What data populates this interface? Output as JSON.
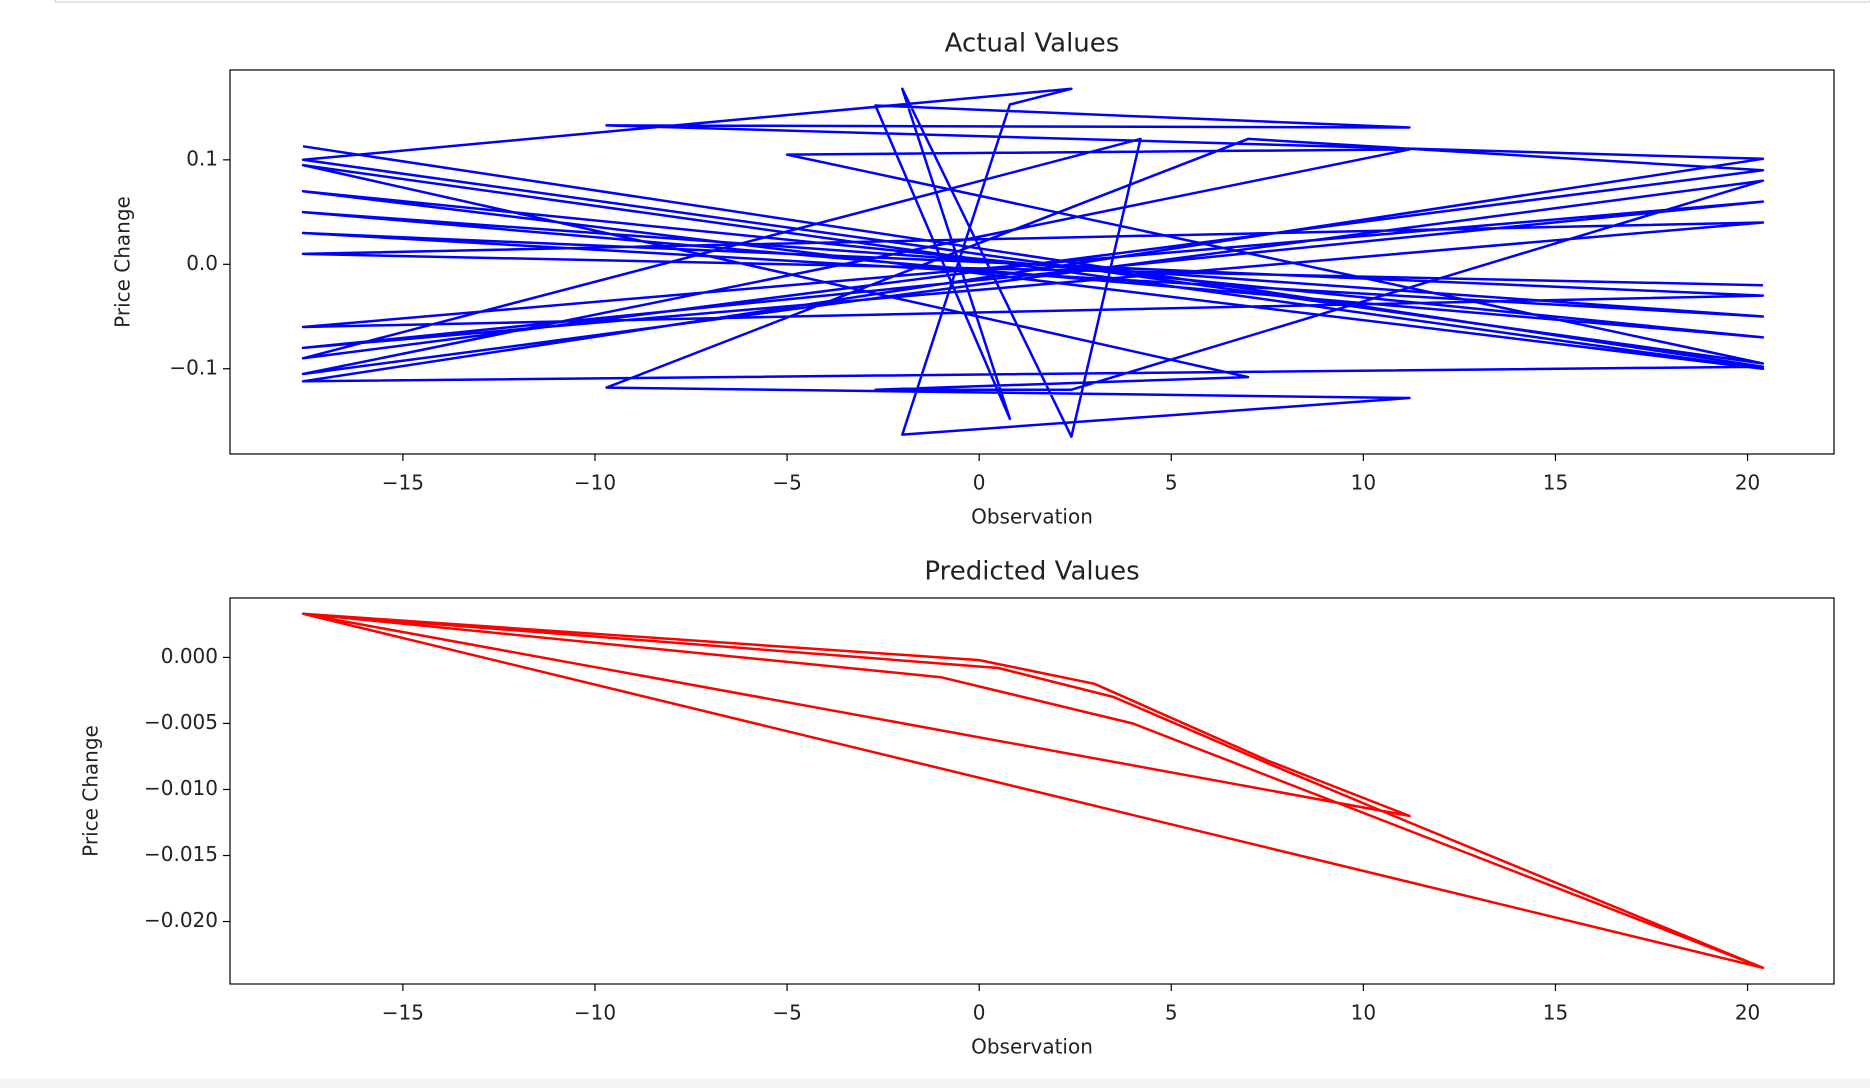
{
  "chart_data": [
    {
      "type": "line",
      "title": "Actual Values",
      "xlabel": "Observation",
      "ylabel": "Price Change",
      "color": "#0000ff",
      "x": [
        -17.6,
        20.4,
        -17.6,
        20.4,
        -9.7,
        11.2,
        -2.7,
        0.8,
        -2.0,
        2.4,
        4.2,
        -17.6,
        20.4,
        7.0,
        -9.7,
        11.2,
        -2.0,
        0.8,
        2.4,
        -17.6,
        20.4,
        -5.0,
        11.2,
        -17.6,
        20.4,
        2.4,
        -2.7,
        7.0,
        -17.6,
        20.4,
        -17.6,
        20.4,
        -17.6,
        20.4,
        -17.6,
        20.4,
        -17.6,
        20.4,
        -17.6,
        20.4,
        -17.6,
        20.4
      ],
      "values": [
        0.113,
        -0.098,
        -0.112,
        0.101,
        0.133,
        0.131,
        0.152,
        -0.148,
        0.168,
        -0.165,
        0.12,
        -0.09,
        0.09,
        0.12,
        -0.118,
        -0.128,
        -0.163,
        0.153,
        0.168,
        0.1,
        -0.095,
        0.105,
        0.11,
        -0.105,
        0.08,
        -0.12,
        -0.12,
        -0.108,
        0.095,
        -0.1,
        0.07,
        -0.07,
        0.05,
        -0.05,
        0.03,
        -0.03,
        -0.06,
        0.06,
        -0.08,
        0.04,
        0.01,
        -0.02
      ],
      "xlim": [
        -19.5,
        22.25
      ],
      "ylim": [
        -0.1816,
        0.186
      ],
      "xticks": [
        {
          "value": -15,
          "label": "−15"
        },
        {
          "value": -10,
          "label": "−10"
        },
        {
          "value": -5,
          "label": "−5"
        },
        0,
        5,
        10,
        15,
        20
      ],
      "yticks": [
        {
          "value": -0.1,
          "label": "−0.1"
        },
        {
          "value": 0,
          "label": "0.0"
        },
        0.1
      ]
    },
    {
      "type": "line",
      "title": "Predicted Values",
      "xlabel": "Observation",
      "ylabel": "Price Change",
      "color": "#ff0000",
      "x": [
        -17.6,
        0,
        3,
        7.5,
        11.2,
        -17.6,
        -1,
        4,
        20.4,
        -17.6,
        0.5,
        3.5,
        7.5,
        11.2,
        20.4
      ],
      "values": [
        0.0033,
        -0.0002,
        -0.002,
        -0.0078,
        -0.012,
        0.0033,
        -0.0015,
        -0.005,
        -0.0235,
        0.0033,
        -0.0008,
        -0.003,
        -0.008,
        -0.0125,
        -0.0235
      ],
      "xlim": [
        -19.5,
        22.25
      ],
      "ylim": [
        -0.02473,
        0.0045
      ],
      "xticks": [
        {
          "value": -15,
          "label": "−15"
        },
        {
          "value": -10,
          "label": "−10"
        },
        {
          "value": -5,
          "label": "−5"
        },
        0,
        5,
        10,
        15,
        20
      ],
      "yticks": [
        {
          "value": -0.02,
          "label": "−0.020"
        },
        {
          "value": -0.015,
          "label": "−0.015"
        },
        {
          "value": -0.01,
          "label": "−0.010"
        },
        {
          "value": -0.005,
          "label": "−0.005"
        },
        {
          "value": 0,
          "label": "0.000"
        }
      ]
    }
  ]
}
